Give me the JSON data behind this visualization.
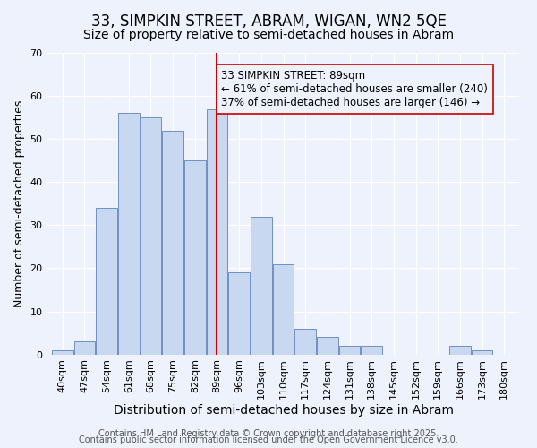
{
  "title": "33, SIMPKIN STREET, ABRAM, WIGAN, WN2 5QE",
  "subtitle": "Size of property relative to semi-detached houses in Abram",
  "xlabel": "Distribution of semi-detached houses by size in Abram",
  "ylabel": "Number of semi-detached properties",
  "bin_labels": [
    "40sqm",
    "47sqm",
    "54sqm",
    "61sqm",
    "68sqm",
    "75sqm",
    "82sqm",
    "89sqm",
    "96sqm",
    "103sqm",
    "110sqm",
    "117sqm",
    "124sqm",
    "131sqm",
    "138sqm",
    "145sqm",
    "152sqm",
    "159sqm",
    "166sqm",
    "173sqm",
    "180sqm"
  ],
  "bar_values": [
    1,
    3,
    34,
    56,
    55,
    52,
    45,
    57,
    19,
    32,
    21,
    6,
    4,
    2,
    2,
    0,
    0,
    0,
    2,
    1,
    0
  ],
  "bar_color": "#c8d8f0",
  "bar_edgecolor": "#7090c0",
  "reference_bin_index": 7,
  "reference_line_color": "#cc0000",
  "annotation_line1": "33 SIMPKIN STREET: 89sqm",
  "annotation_line2": "← 61% of semi-detached houses are smaller (240)",
  "annotation_line3": "37% of semi-detached houses are larger (146) →",
  "annotation_box_edgecolor": "#cc0000",
  "ylim": [
    0,
    70
  ],
  "yticks": [
    0,
    10,
    20,
    30,
    40,
    50,
    60,
    70
  ],
  "background_color": "#eef2fc",
  "footer_line1": "Contains HM Land Registry data © Crown copyright and database right 2025.",
  "footer_line2": "Contains public sector information licensed under the Open Government Licence v3.0.",
  "title_fontsize": 12,
  "subtitle_fontsize": 10,
  "xlabel_fontsize": 10,
  "ylabel_fontsize": 9,
  "tick_fontsize": 8,
  "annotation_fontsize": 8.5,
  "footer_fontsize": 7
}
